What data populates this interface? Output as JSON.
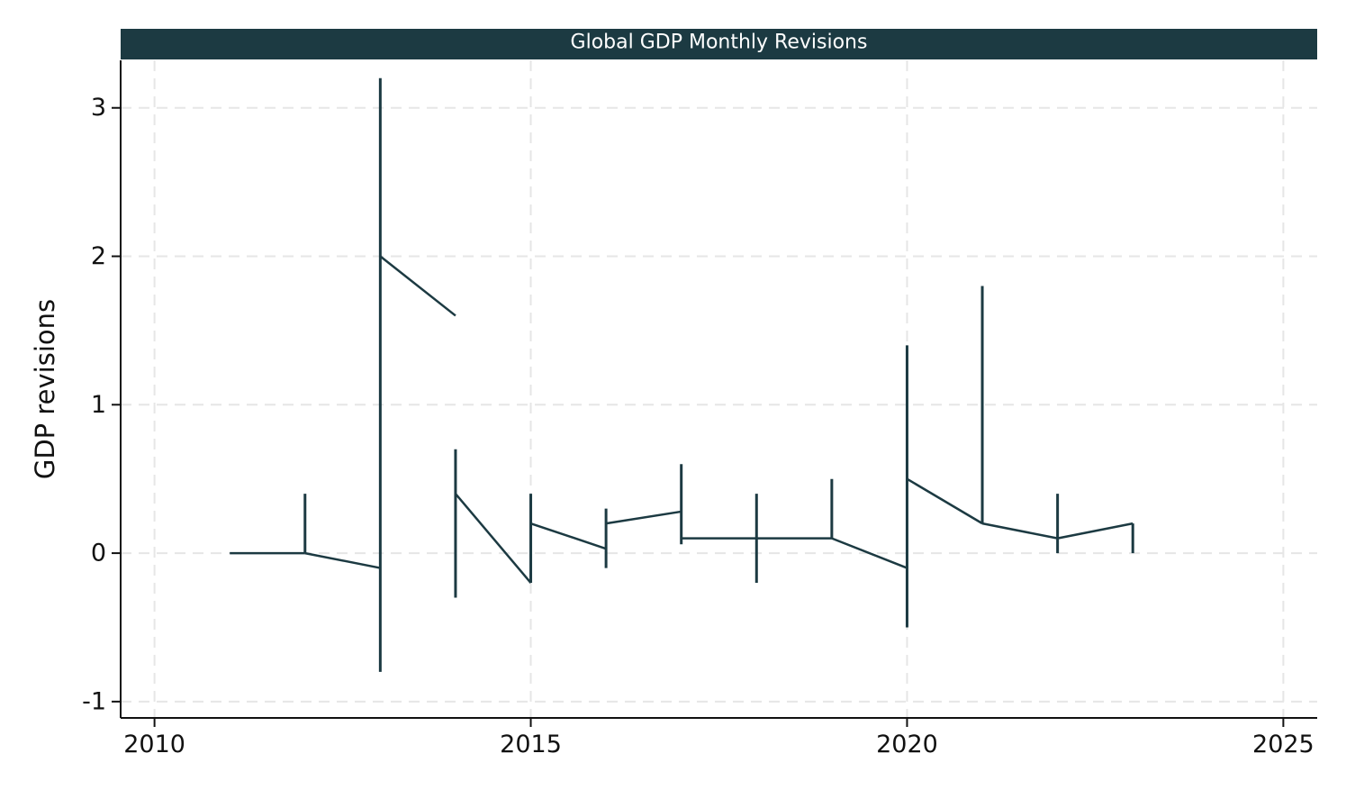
{
  "chart_data": {
    "type": "line",
    "title": "Global GDP Monthly Revisions",
    "xlabel": "",
    "ylabel": "GDP revisions",
    "xlim": [
      2009.55,
      2025.45
    ],
    "ylim": [
      -1.11,
      3.32
    ],
    "x_ticks": [
      "2010",
      "2015",
      "2020",
      "2025"
    ],
    "y_ticks": [
      "-1",
      "0",
      "1",
      "2",
      "3"
    ],
    "grid": true,
    "legend": "none",
    "colors": {
      "line": "#1c3a42",
      "title_bar": "#1c3a42",
      "grid": "#e6e6e6",
      "axis": "#111111"
    },
    "x": [
      2011,
      2012,
      2013,
      2014,
      2015,
      2016,
      2017,
      2018,
      2019,
      2020,
      2021,
      2022,
      2023
    ],
    "series": [
      {
        "values": [
          0.0,
          0.0,
          -0.1,
          1.6,
          -0.2,
          0.03,
          0.28,
          0.1,
          0.1,
          -0.1,
          0.2,
          0.1,
          0.2
        ]
      },
      {
        "values": [
          0.0,
          0.0,
          2.0,
          0.4,
          0.2,
          0.2,
          0.1,
          0.1,
          0.1,
          0.5,
          0.2,
          0.1,
          0.0
        ]
      }
    ],
    "ranges": [
      {
        "x": 2012,
        "low": 0.0,
        "high": 0.4
      },
      {
        "x": 2013,
        "low": -0.8,
        "high": 3.2
      },
      {
        "x": 2014,
        "low": -0.3,
        "high": 0.7
      },
      {
        "x": 2015,
        "low": -0.2,
        "high": 0.4
      },
      {
        "x": 2016,
        "low": -0.1,
        "high": 0.3
      },
      {
        "x": 2017,
        "low": 0.06,
        "high": 0.6
      },
      {
        "x": 2018,
        "low": -0.2,
        "high": 0.4
      },
      {
        "x": 2019,
        "low": 0.1,
        "high": 0.5
      },
      {
        "x": 2020,
        "low": -0.5,
        "high": 1.4
      },
      {
        "x": 2021,
        "low": 0.2,
        "high": 1.8
      },
      {
        "x": 2022,
        "low": 0.0,
        "high": 0.4
      },
      {
        "x": 2023,
        "low": 0.0,
        "high": 0.2
      }
    ]
  }
}
